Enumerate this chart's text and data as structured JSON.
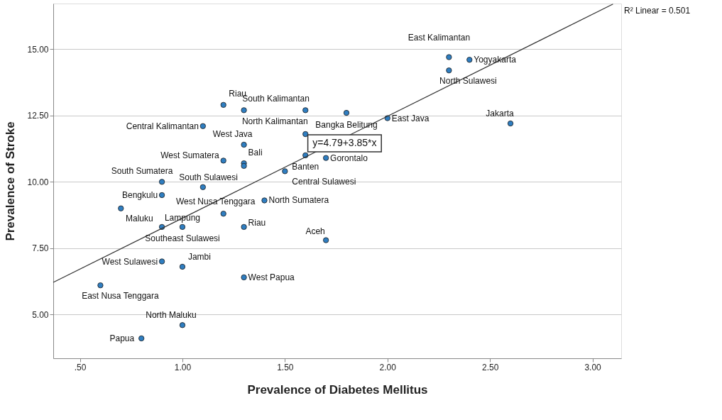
{
  "chart_data": {
    "type": "scatter",
    "xlabel": "Prevalence of Diabetes Mellitus",
    "ylabel": "Prevalence of Stroke",
    "xlim": [
      0.37,
      3.14
    ],
    "ylim": [
      3.35,
      16.72
    ],
    "xticks": [
      {
        "value": 0.5,
        "label": ".50"
      },
      {
        "value": 1.0,
        "label": "1.00"
      },
      {
        "value": 1.5,
        "label": "1.50"
      },
      {
        "value": 2.0,
        "label": "2.00"
      },
      {
        "value": 2.5,
        "label": "2.50"
      },
      {
        "value": 3.0,
        "label": "3.00"
      }
    ],
    "yticks": [
      {
        "value": 5,
        "label": "5.00"
      },
      {
        "value": 7.5,
        "label": "7.50"
      },
      {
        "value": 10,
        "label": "10.00"
      },
      {
        "value": 12.5,
        "label": "12.50"
      },
      {
        "value": 15,
        "label": "15.00"
      }
    ],
    "grid": "y",
    "marker": "circle",
    "series": [
      {
        "color": "#2f7ec1",
        "x": [
          1.2,
          1.3,
          1.6,
          1.8,
          2.0,
          2.3,
          2.4,
          2.3,
          2.6,
          1.1,
          1.3,
          1.3,
          1.2,
          1.3,
          1.6,
          1.7,
          1.5,
          0.9,
          0.9,
          0.7,
          1.2,
          1.4,
          1.3,
          1.0,
          0.9,
          1.7,
          0.9,
          1.0,
          1.3,
          0.6,
          1.0,
          0.8,
          1.6,
          1.1
        ],
        "values": [
          12.9,
          12.7,
          12.7,
          12.6,
          12.4,
          14.7,
          14.6,
          14.2,
          12.2,
          12.1,
          11.4,
          10.7,
          10.8,
          10.6,
          11.0,
          10.9,
          10.4,
          10.0,
          9.5,
          9.0,
          8.8,
          9.3,
          8.3,
          8.3,
          8.3,
          7.8,
          7.0,
          6.8,
          6.4,
          6.1,
          4.6,
          4.1,
          11.8,
          9.8
        ]
      },
      {
        "type": "line",
        "marker": "none",
        "color": "#333333",
        "x": [
          0.37,
          3.1
        ],
        "values": [
          6.21,
          16.7
        ]
      }
    ],
    "annotations": [
      "y=4.79+3.85*x",
      {
        "text": "Riau",
        "x": 1.2,
        "y": 12.9
      },
      {
        "text": "South Kalimantan",
        "x": 1.3,
        "y": 12.7
      },
      {
        "text": "North Kalimantan",
        "x": 1.6,
        "y": 12.7
      },
      {
        "text": "Bangka Belitung",
        "x": 1.8,
        "y": 12.6
      },
      {
        "text": "East Java",
        "x": 2.0,
        "y": 12.4
      },
      {
        "text": "East Kalimantan",
        "x": 2.3,
        "y": 14.7
      },
      {
        "text": "Yogyakarta",
        "x": 2.4,
        "y": 14.6
      },
      {
        "text": "North Sulawesi",
        "x": 2.3,
        "y": 14.2
      },
      {
        "text": "Jakarta",
        "x": 2.6,
        "y": 12.2
      },
      {
        "text": "Central Kalimantan",
        "x": 1.1,
        "y": 12.1
      },
      {
        "text": "West Java",
        "x": 1.3,
        "y": 11.4
      },
      {
        "text": "Bali",
        "x": 1.3,
        "y": 10.7
      },
      {
        "text": "West Sumatera",
        "x": 1.2,
        "y": 10.8
      },
      {
        "text": "South Sulawesi",
        "x": 1.3,
        "y": 10.6
      },
      {
        "text": "Banten",
        "x": 1.6,
        "y": 11.0
      },
      {
        "text": "Gorontalo",
        "x": 1.7,
        "y": 10.9
      },
      {
        "text": "Central Sulawesi",
        "x": 1.5,
        "y": 10.4
      },
      {
        "text": "South Sumatera",
        "x": 0.9,
        "y": 10.0
      },
      {
        "text": "Bengkulu",
        "x": 0.9,
        "y": 9.5
      },
      {
        "text": "Maluku",
        "x": 0.7,
        "y": 9.0
      },
      {
        "text": "West Nusa Tenggara",
        "x": 1.2,
        "y": 8.8
      },
      {
        "text": "North Sumatera",
        "x": 1.4,
        "y": 9.3
      },
      {
        "text": "Riau",
        "x": 1.3,
        "y": 8.3
      },
      {
        "text": "Lampung",
        "x": 1.0,
        "y": 8.3
      },
      {
        "text": "Southeast Sulawesi",
        "x": 0.9,
        "y": 8.3
      },
      {
        "text": "Aceh",
        "x": 1.7,
        "y": 7.8
      },
      {
        "text": "West Sulawesi",
        "x": 0.9,
        "y": 7.0
      },
      {
        "text": "Jambi",
        "x": 1.0,
        "y": 6.8
      },
      {
        "text": "West Papua",
        "x": 1.3,
        "y": 6.4
      },
      {
        "text": "East Nusa Tenggara",
        "x": 0.6,
        "y": 6.1
      },
      {
        "text": "North Maluku",
        "x": 1.0,
        "y": 4.6
      },
      {
        "text": "Papua",
        "x": 0.8,
        "y": 4.1
      },
      "R² Linear = 0.501"
    ]
  }
}
